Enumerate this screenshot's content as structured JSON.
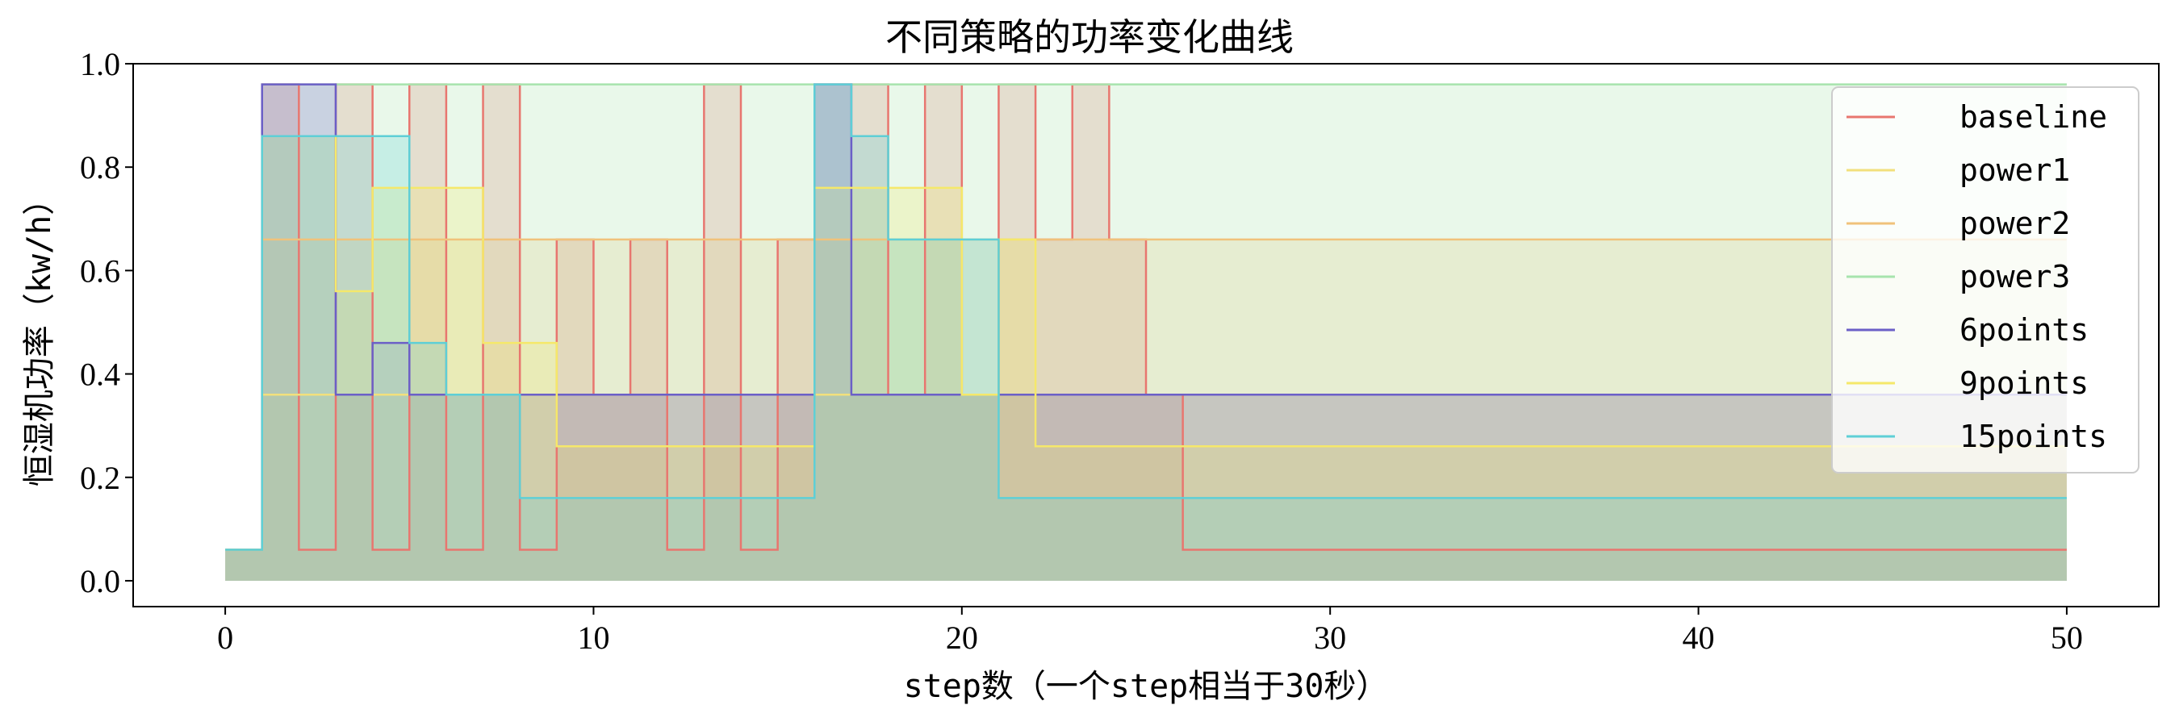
{
  "chart_data": {
    "type": "area",
    "title": "不同策略的功率变化曲线",
    "xlabel": "step数（一个step相当于30秒）",
    "ylabel": "恒湿机功率（kw/h）",
    "xlim": [
      -2.5,
      52.5
    ],
    "ylim": [
      -0.05,
      1.0
    ],
    "xticks": [
      "0",
      "10",
      "20",
      "30",
      "40",
      "50"
    ],
    "yticks": [
      "0.0",
      "0.2",
      "0.4",
      "0.6",
      "0.8",
      "1.0"
    ],
    "xtick_values": [
      0,
      10,
      20,
      30,
      40,
      50
    ],
    "ytick_values": [
      0.0,
      0.2,
      0.4,
      0.6,
      0.8,
      1.0
    ],
    "step_type": "post",
    "grid": false,
    "legend_position": "top-right",
    "series": [
      {
        "name": "baseline",
        "color": "#e8766f",
        "x": [
          0,
          1,
          2,
          3,
          4,
          5,
          6,
          7,
          8,
          9,
          10,
          11,
          12,
          13,
          14,
          15,
          16,
          17,
          18,
          19,
          20,
          21,
          22,
          23,
          24,
          25,
          26,
          50
        ],
        "y": [
          0.06,
          0.96,
          0.06,
          0.96,
          0.06,
          0.96,
          0.06,
          0.96,
          0.06,
          0.66,
          0.36,
          0.66,
          0.06,
          0.96,
          0.06,
          0.66,
          0.96,
          0.96,
          0.36,
          0.96,
          0.36,
          0.96,
          0.66,
          0.96,
          0.66,
          0.36,
          0.06,
          0.06
        ]
      },
      {
        "name": "power1",
        "color": "#f2e07c",
        "x": [
          0,
          1,
          2,
          3,
          4,
          5,
          6,
          7,
          8,
          9,
          10,
          11,
          12,
          13,
          14,
          15,
          16,
          17,
          18,
          19,
          20,
          21,
          22,
          23,
          24,
          25,
          26,
          50
        ],
        "y": [
          0.06,
          0.36,
          0.36,
          0.36,
          0.36,
          0.36,
          0.36,
          0.36,
          0.36,
          0.36,
          0.36,
          0.36,
          0.36,
          0.36,
          0.36,
          0.36,
          0.36,
          0.36,
          0.36,
          0.36,
          0.36,
          0.36,
          0.36,
          0.36,
          0.36,
          0.36,
          0.36,
          0.36
        ]
      },
      {
        "name": "power2",
        "color": "#f0c27b",
        "x": [
          0,
          1,
          2,
          3,
          4,
          5,
          6,
          7,
          8,
          9,
          10,
          11,
          12,
          13,
          14,
          15,
          16,
          17,
          18,
          19,
          20,
          21,
          22,
          23,
          24,
          25,
          26,
          50
        ],
        "y": [
          0.06,
          0.66,
          0.66,
          0.66,
          0.66,
          0.66,
          0.66,
          0.66,
          0.66,
          0.66,
          0.66,
          0.66,
          0.66,
          0.66,
          0.66,
          0.66,
          0.66,
          0.66,
          0.66,
          0.66,
          0.66,
          0.66,
          0.66,
          0.66,
          0.66,
          0.66,
          0.66,
          0.66
        ]
      },
      {
        "name": "power3",
        "color": "#a7e4ad",
        "x": [
          0,
          1,
          2,
          3,
          4,
          5,
          6,
          7,
          8,
          9,
          10,
          11,
          12,
          13,
          14,
          15,
          16,
          17,
          18,
          19,
          20,
          21,
          22,
          23,
          24,
          25,
          26,
          50
        ],
        "y": [
          0.06,
          0.96,
          0.96,
          0.96,
          0.96,
          0.96,
          0.96,
          0.96,
          0.96,
          0.96,
          0.96,
          0.96,
          0.96,
          0.96,
          0.96,
          0.96,
          0.96,
          0.96,
          0.96,
          0.96,
          0.96,
          0.96,
          0.96,
          0.96,
          0.96,
          0.96,
          0.96,
          0.96
        ]
      },
      {
        "name": "6points",
        "color": "#6b5fc7",
        "x": [
          0,
          1,
          2,
          3,
          4,
          5,
          6,
          7,
          8,
          9,
          10,
          11,
          12,
          13,
          14,
          15,
          16,
          17,
          18,
          19,
          20,
          21,
          22,
          23,
          24,
          25,
          26,
          50
        ],
        "y": [
          0.06,
          0.96,
          0.96,
          0.36,
          0.46,
          0.36,
          0.36,
          0.36,
          0.36,
          0.36,
          0.36,
          0.36,
          0.36,
          0.36,
          0.36,
          0.36,
          0.96,
          0.36,
          0.36,
          0.36,
          0.36,
          0.36,
          0.36,
          0.36,
          0.36,
          0.36,
          0.36,
          0.36
        ]
      },
      {
        "name": "9points",
        "color": "#f5e86a",
        "x": [
          0,
          1,
          2,
          3,
          4,
          5,
          6,
          7,
          8,
          9,
          10,
          11,
          12,
          13,
          14,
          15,
          16,
          17,
          18,
          19,
          20,
          21,
          22,
          23,
          24,
          25,
          26,
          50
        ],
        "y": [
          0.06,
          0.86,
          0.86,
          0.56,
          0.76,
          0.76,
          0.76,
          0.46,
          0.46,
          0.26,
          0.26,
          0.26,
          0.26,
          0.26,
          0.26,
          0.26,
          0.76,
          0.76,
          0.76,
          0.76,
          0.36,
          0.66,
          0.26,
          0.26,
          0.26,
          0.26,
          0.26,
          0.26
        ]
      },
      {
        "name": "15points",
        "color": "#5ecfd6",
        "x": [
          0,
          1,
          2,
          3,
          4,
          5,
          6,
          7,
          8,
          9,
          10,
          11,
          12,
          13,
          14,
          15,
          16,
          17,
          18,
          19,
          20,
          21,
          22,
          23,
          24,
          25,
          26,
          50
        ],
        "y": [
          0.06,
          0.86,
          0.86,
          0.86,
          0.86,
          0.46,
          0.36,
          0.36,
          0.16,
          0.16,
          0.16,
          0.16,
          0.16,
          0.16,
          0.16,
          0.16,
          0.96,
          0.86,
          0.66,
          0.66,
          0.66,
          0.16,
          0.16,
          0.16,
          0.16,
          0.16,
          0.16,
          0.16
        ]
      }
    ]
  }
}
